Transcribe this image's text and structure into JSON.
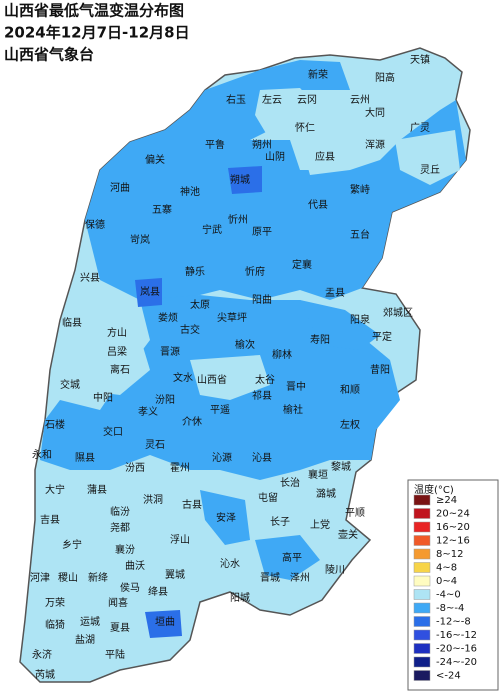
{
  "header": {
    "title": "山西省最低气温变温分布图",
    "period": "2024年12月7日-12月8日",
    "source": "山西省气象台"
  },
  "legend": {
    "title": "温度(°C)",
    "items": [
      {
        "label": "≥24",
        "color": "#7a1414"
      },
      {
        "label": "20~24",
        "color": "#c0141e"
      },
      {
        "label": "16~20",
        "color": "#e82424"
      },
      {
        "label": "12~16",
        "color": "#f05a28"
      },
      {
        "label": "8~12",
        "color": "#f59a30"
      },
      {
        "label": "4~8",
        "color": "#f7d448"
      },
      {
        "label": "0~4",
        "color": "#fffcc0"
      },
      {
        "label": "-4~0",
        "color": "#aee4f4"
      },
      {
        "label": "-8~-4",
        "color": "#3fa9f5"
      },
      {
        "label": "-12~-8",
        "color": "#2b6fe8"
      },
      {
        "label": "-16~-12",
        "color": "#3050e0"
      },
      {
        "label": "-20~-16",
        "color": "#1e30c0"
      },
      {
        "label": "-24~-20",
        "color": "#10208a"
      },
      {
        "label": "<-24",
        "color": "#1a1a60"
      }
    ]
  },
  "counties": [
    "天镇",
    "新荣",
    "阳高",
    "左云",
    "云冈",
    "云州",
    "右玉",
    "大同",
    "怀仁",
    "广灵",
    "平鲁",
    "朔州",
    "山阴",
    "应县",
    "浑源",
    "灵丘",
    "偏关",
    "朔城",
    "河曲",
    "神池",
    "繁峙",
    "五寨",
    "代县",
    "保德",
    "宁武",
    "忻州",
    "原平",
    "岢岚",
    "五台",
    "静乐",
    "忻府",
    "定襄",
    "兴县",
    "岚县",
    "盂县",
    "阳曲",
    "娄烦",
    "太原",
    "阳泉",
    "临县",
    "方山",
    "古交",
    "尖草坪",
    "寿阳",
    "郊城区",
    "平定",
    "吕梁",
    "离石",
    "交城",
    "晋源",
    "榆次",
    "柳林",
    "文水",
    "山西省",
    "太谷",
    "昔阳",
    "和顺",
    "晋中",
    "中阳",
    "汾阳",
    "祁县",
    "平遥",
    "榆社",
    "孝义",
    "左权",
    "石楼",
    "交口",
    "介休",
    "永和",
    "隰县",
    "灵石",
    "沁源",
    "沁县",
    "汾西",
    "霍州",
    "襄垣",
    "黎城",
    "大宁",
    "蒲县",
    "长治",
    "潞城",
    "屯留",
    "古县",
    "洪洞",
    "平顺",
    "吉县",
    "临汾",
    "安泽",
    "长子",
    "上党",
    "壶关",
    "乡宁",
    "尧都",
    "浮山",
    "襄汾",
    "沁水",
    "高平",
    "陵川",
    "河津",
    "稷山",
    "新绛",
    "曲沃",
    "翼城",
    "侯马",
    "绛县",
    "泽州",
    "晋城",
    "万荣",
    "闻喜",
    "阳城",
    "临猗",
    "运城",
    "夏县",
    "垣曲",
    "盐湖",
    "永济",
    "平陆",
    "芮城"
  ]
}
